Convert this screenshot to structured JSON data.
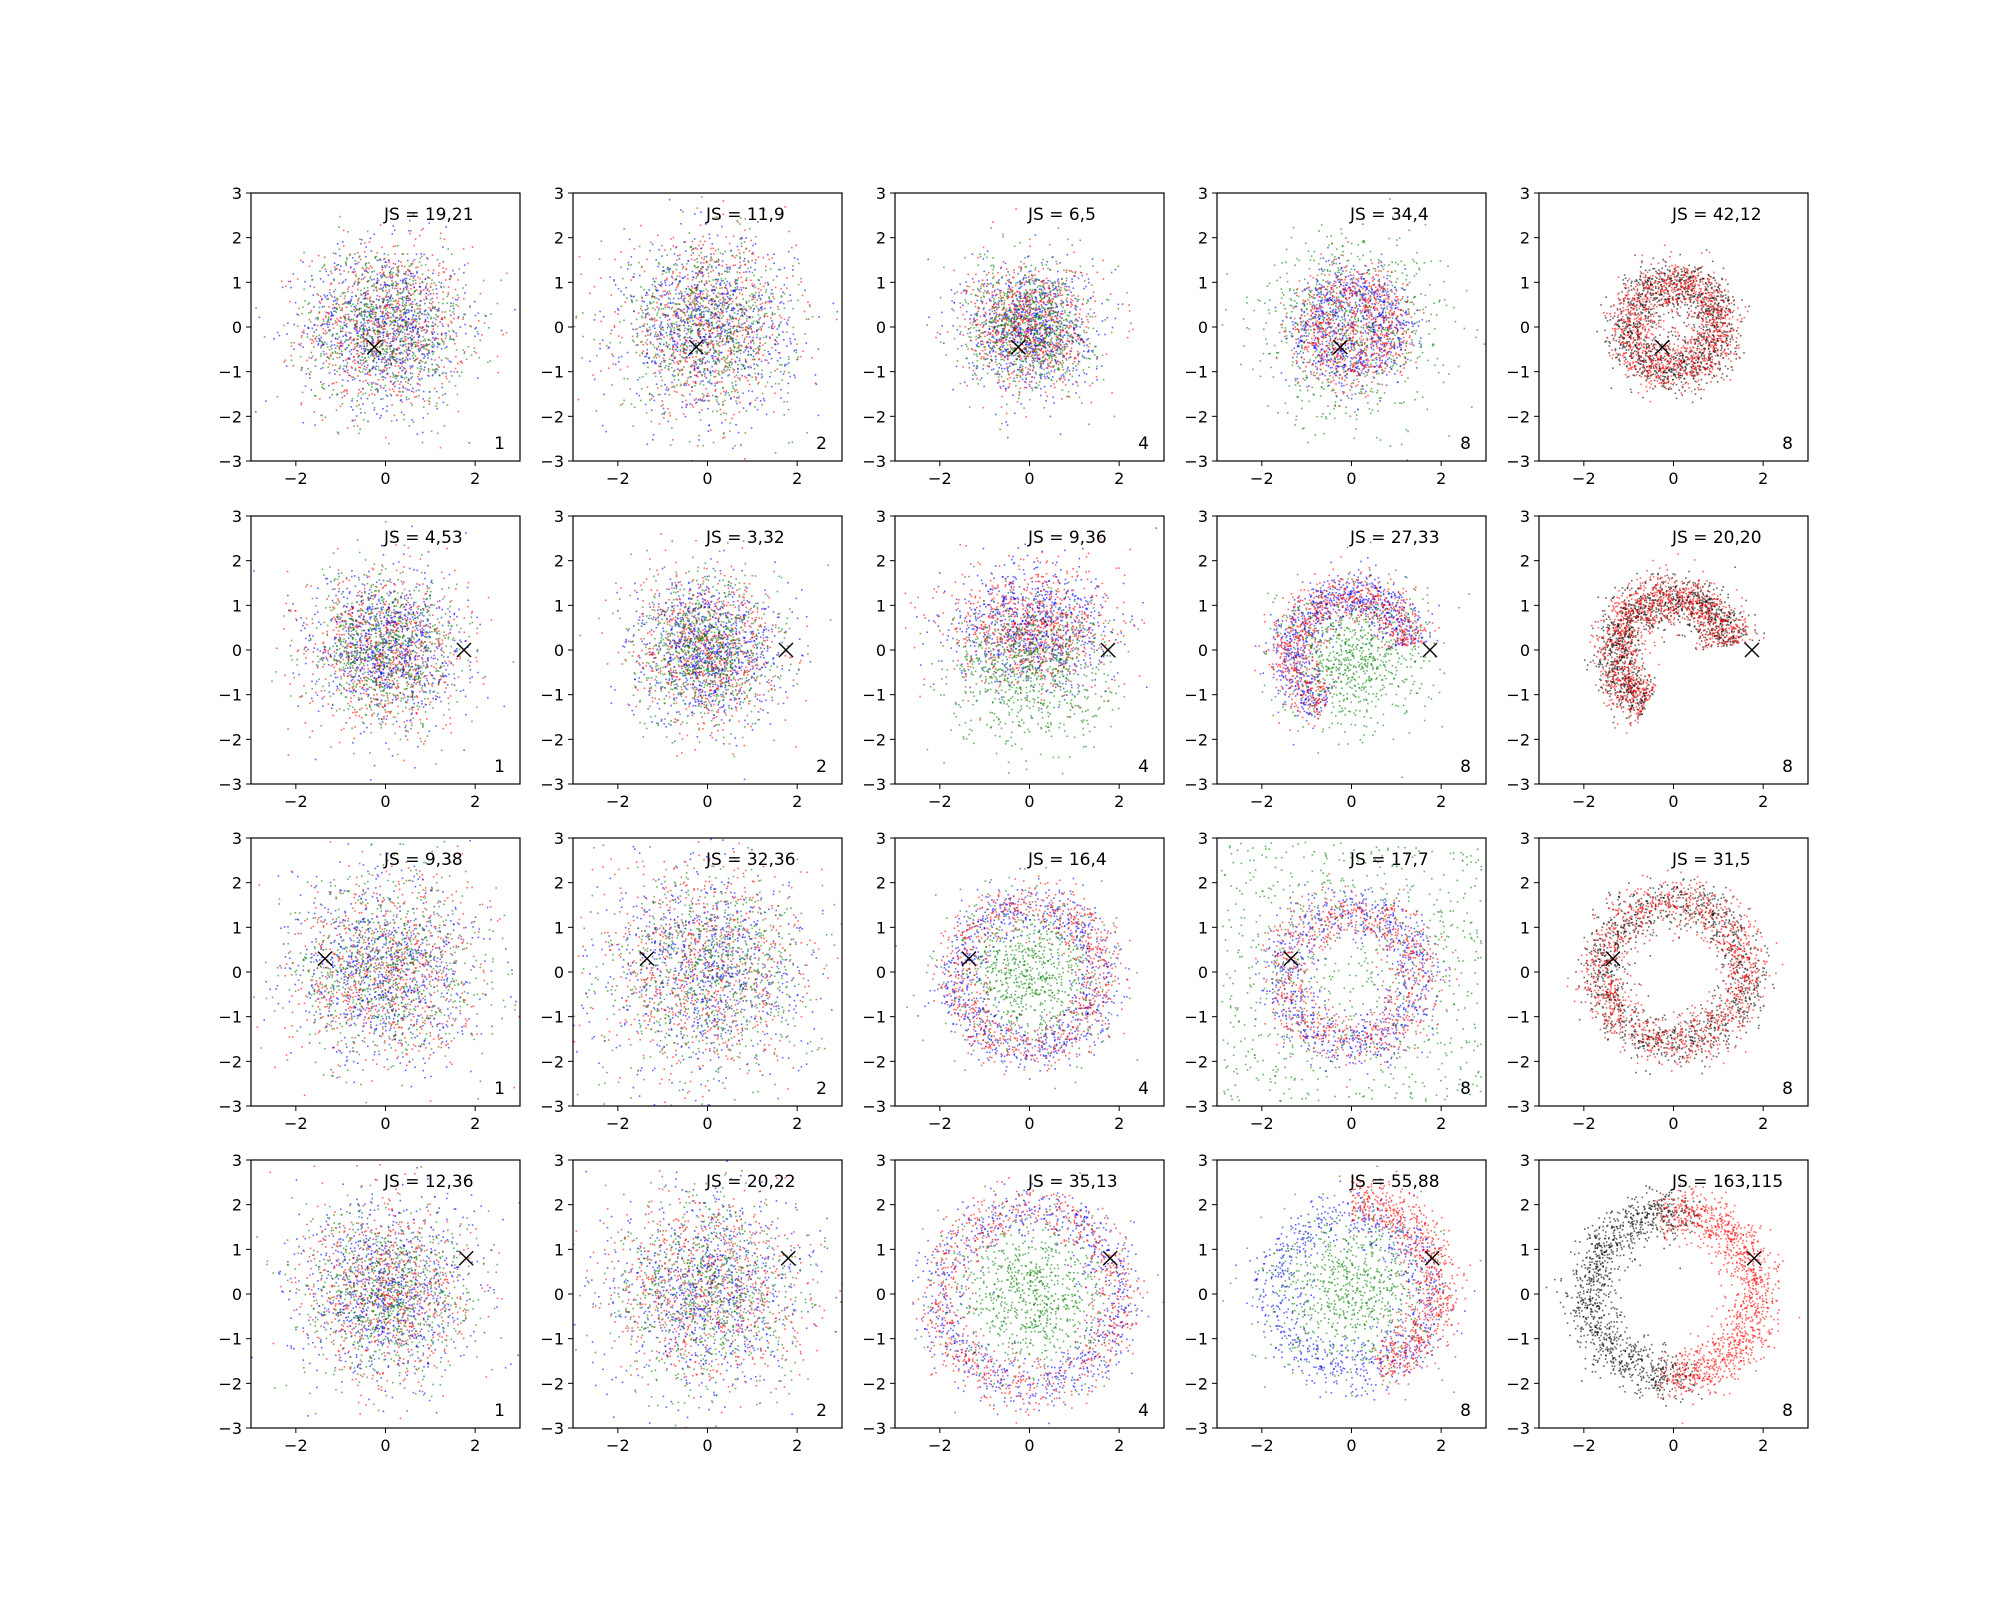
{
  "chart_data": {
    "type": "scatter",
    "title": "",
    "grid": false,
    "layout_rows": 4,
    "layout_cols": 5,
    "xlim": [
      -3,
      3
    ],
    "ylim": [
      -3,
      3
    ],
    "xticks": [
      -2,
      0,
      2
    ],
    "yticks": [
      -3,
      -2,
      -1,
      0,
      1,
      2,
      3
    ],
    "colors": {
      "red": "#ff0000",
      "blue": "#0000ff",
      "green": "#008000",
      "black": "#000000",
      "marker": "#000000"
    },
    "rows": [
      {
        "marker": [
          -0.25,
          -0.45
        ],
        "panels": [
          {
            "js": "JS = 19,21",
            "n": "1",
            "kind": "disc",
            "colors": [
              "red",
              "blue",
              "green"
            ],
            "radius": 0.9
          },
          {
            "js": "JS = 11,9",
            "n": "2",
            "kind": "disc",
            "colors": [
              "red",
              "blue",
              "green"
            ],
            "radius": 0.95
          },
          {
            "js": "JS = 6,5",
            "n": "4",
            "kind": "disc",
            "colors": [
              "blue",
              "red",
              "green"
            ],
            "radius": 0.7
          },
          {
            "js": "JS = 34,4",
            "n": "8",
            "kind": "ring_mix",
            "colors": [
              "green",
              "blue",
              "red"
            ],
            "radius": 0.9
          },
          {
            "js": "JS = 42,12",
            "n": "8",
            "kind": "ring2",
            "colors": [
              "black",
              "red"
            ],
            "radius": 1.0
          }
        ]
      },
      {
        "marker": [
          1.75,
          0.0
        ],
        "panels": [
          {
            "js": "JS = 4,53",
            "n": "1",
            "kind": "disc",
            "colors": [
              "red",
              "blue",
              "green"
            ],
            "radius": 0.85
          },
          {
            "js": "JS = 3,32",
            "n": "2",
            "kind": "disc",
            "colors": [
              "red",
              "blue",
              "green"
            ],
            "radius": 0.8
          },
          {
            "js": "JS = 9,36",
            "n": "4",
            "kind": "split",
            "colors": [
              "blue",
              "red",
              "green"
            ],
            "radius": 0.85
          },
          {
            "js": "JS = 27,33",
            "n": "8",
            "kind": "crescent",
            "colors": [
              "green",
              "blue",
              "red"
            ],
            "radius": 1.35
          },
          {
            "js": "JS = 20,20",
            "n": "8",
            "kind": "crescent2",
            "colors": [
              "black",
              "red"
            ],
            "radius": 1.3
          }
        ]
      },
      {
        "marker": [
          -1.35,
          0.3
        ],
        "panels": [
          {
            "js": "JS = 9,38",
            "n": "1",
            "kind": "disc",
            "colors": [
              "red",
              "blue",
              "green"
            ],
            "radius": 1.05
          },
          {
            "js": "JS = 32,36",
            "n": "2",
            "kind": "disc",
            "colors": [
              "red",
              "blue",
              "green"
            ],
            "radius": 1.15
          },
          {
            "js": "JS = 16,4",
            "n": "4",
            "kind": "ringdisc",
            "colors": [
              "green",
              "blue",
              "red"
            ],
            "radius": 1.6
          },
          {
            "js": "JS = 17,7",
            "n": "8",
            "kind": "ring_outer",
            "colors": [
              "green",
              "blue",
              "red"
            ],
            "radius": 1.5
          },
          {
            "js": "JS = 31,5",
            "n": "8",
            "kind": "ring2",
            "colors": [
              "black",
              "red"
            ],
            "radius": 1.6
          }
        ]
      },
      {
        "marker": [
          1.8,
          0.8
        ],
        "panels": [
          {
            "js": "JS = 12,36",
            "n": "1",
            "kind": "disc",
            "colors": [
              "red",
              "blue",
              "green"
            ],
            "radius": 0.95
          },
          {
            "js": "JS = 20,22",
            "n": "2",
            "kind": "disc",
            "colors": [
              "red",
              "blue",
              "green"
            ],
            "radius": 1.1
          },
          {
            "js": "JS = 35,13",
            "n": "4",
            "kind": "ringdisc",
            "colors": [
              "green",
              "blue",
              "red"
            ],
            "radius": 2.0
          },
          {
            "js": "JS = 55,88",
            "n": "8",
            "kind": "crescent3",
            "colors": [
              "green",
              "blue",
              "red"
            ],
            "radius": 1.9
          },
          {
            "js": "JS = 163,115",
            "n": "8",
            "kind": "ring2b",
            "colors": [
              "black",
              "red"
            ],
            "radius": 1.85
          }
        ]
      }
    ]
  }
}
